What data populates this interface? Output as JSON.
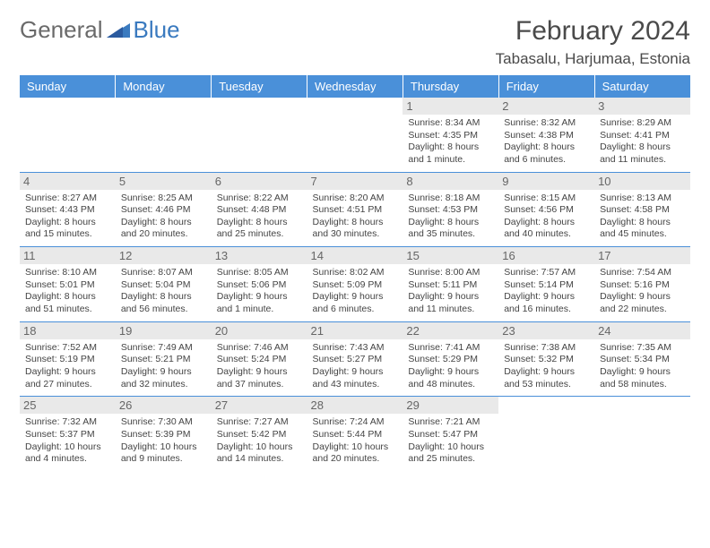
{
  "logo": {
    "word1": "General",
    "word2": "Blue"
  },
  "title": "February 2024",
  "location": "Tabasalu, Harjumaa, Estonia",
  "colors": {
    "header_bg": "#4a90d9",
    "header_text": "#ffffff",
    "daynum_bg": "#e9e9e9",
    "daynum_text": "#666666",
    "border": "#4a90d9",
    "logo_gray": "#6a6a6a",
    "logo_blue": "#3a7abf"
  },
  "weekdays": [
    "Sunday",
    "Monday",
    "Tuesday",
    "Wednesday",
    "Thursday",
    "Friday",
    "Saturday"
  ],
  "weeks": [
    [
      {
        "empty": true
      },
      {
        "empty": true
      },
      {
        "empty": true
      },
      {
        "empty": true
      },
      {
        "day": "1",
        "sunrise": "Sunrise: 8:34 AM",
        "sunset": "Sunset: 4:35 PM",
        "daylight": "Daylight: 8 hours and 1 minute."
      },
      {
        "day": "2",
        "sunrise": "Sunrise: 8:32 AM",
        "sunset": "Sunset: 4:38 PM",
        "daylight": "Daylight: 8 hours and 6 minutes."
      },
      {
        "day": "3",
        "sunrise": "Sunrise: 8:29 AM",
        "sunset": "Sunset: 4:41 PM",
        "daylight": "Daylight: 8 hours and 11 minutes."
      }
    ],
    [
      {
        "day": "4",
        "sunrise": "Sunrise: 8:27 AM",
        "sunset": "Sunset: 4:43 PM",
        "daylight": "Daylight: 8 hours and 15 minutes."
      },
      {
        "day": "5",
        "sunrise": "Sunrise: 8:25 AM",
        "sunset": "Sunset: 4:46 PM",
        "daylight": "Daylight: 8 hours and 20 minutes."
      },
      {
        "day": "6",
        "sunrise": "Sunrise: 8:22 AM",
        "sunset": "Sunset: 4:48 PM",
        "daylight": "Daylight: 8 hours and 25 minutes."
      },
      {
        "day": "7",
        "sunrise": "Sunrise: 8:20 AM",
        "sunset": "Sunset: 4:51 PM",
        "daylight": "Daylight: 8 hours and 30 minutes."
      },
      {
        "day": "8",
        "sunrise": "Sunrise: 8:18 AM",
        "sunset": "Sunset: 4:53 PM",
        "daylight": "Daylight: 8 hours and 35 minutes."
      },
      {
        "day": "9",
        "sunrise": "Sunrise: 8:15 AM",
        "sunset": "Sunset: 4:56 PM",
        "daylight": "Daylight: 8 hours and 40 minutes."
      },
      {
        "day": "10",
        "sunrise": "Sunrise: 8:13 AM",
        "sunset": "Sunset: 4:58 PM",
        "daylight": "Daylight: 8 hours and 45 minutes."
      }
    ],
    [
      {
        "day": "11",
        "sunrise": "Sunrise: 8:10 AM",
        "sunset": "Sunset: 5:01 PM",
        "daylight": "Daylight: 8 hours and 51 minutes."
      },
      {
        "day": "12",
        "sunrise": "Sunrise: 8:07 AM",
        "sunset": "Sunset: 5:04 PM",
        "daylight": "Daylight: 8 hours and 56 minutes."
      },
      {
        "day": "13",
        "sunrise": "Sunrise: 8:05 AM",
        "sunset": "Sunset: 5:06 PM",
        "daylight": "Daylight: 9 hours and 1 minute."
      },
      {
        "day": "14",
        "sunrise": "Sunrise: 8:02 AM",
        "sunset": "Sunset: 5:09 PM",
        "daylight": "Daylight: 9 hours and 6 minutes."
      },
      {
        "day": "15",
        "sunrise": "Sunrise: 8:00 AM",
        "sunset": "Sunset: 5:11 PM",
        "daylight": "Daylight: 9 hours and 11 minutes."
      },
      {
        "day": "16",
        "sunrise": "Sunrise: 7:57 AM",
        "sunset": "Sunset: 5:14 PM",
        "daylight": "Daylight: 9 hours and 16 minutes."
      },
      {
        "day": "17",
        "sunrise": "Sunrise: 7:54 AM",
        "sunset": "Sunset: 5:16 PM",
        "daylight": "Daylight: 9 hours and 22 minutes."
      }
    ],
    [
      {
        "day": "18",
        "sunrise": "Sunrise: 7:52 AM",
        "sunset": "Sunset: 5:19 PM",
        "daylight": "Daylight: 9 hours and 27 minutes."
      },
      {
        "day": "19",
        "sunrise": "Sunrise: 7:49 AM",
        "sunset": "Sunset: 5:21 PM",
        "daylight": "Daylight: 9 hours and 32 minutes."
      },
      {
        "day": "20",
        "sunrise": "Sunrise: 7:46 AM",
        "sunset": "Sunset: 5:24 PM",
        "daylight": "Daylight: 9 hours and 37 minutes."
      },
      {
        "day": "21",
        "sunrise": "Sunrise: 7:43 AM",
        "sunset": "Sunset: 5:27 PM",
        "daylight": "Daylight: 9 hours and 43 minutes."
      },
      {
        "day": "22",
        "sunrise": "Sunrise: 7:41 AM",
        "sunset": "Sunset: 5:29 PM",
        "daylight": "Daylight: 9 hours and 48 minutes."
      },
      {
        "day": "23",
        "sunrise": "Sunrise: 7:38 AM",
        "sunset": "Sunset: 5:32 PM",
        "daylight": "Daylight: 9 hours and 53 minutes."
      },
      {
        "day": "24",
        "sunrise": "Sunrise: 7:35 AM",
        "sunset": "Sunset: 5:34 PM",
        "daylight": "Daylight: 9 hours and 58 minutes."
      }
    ],
    [
      {
        "day": "25",
        "sunrise": "Sunrise: 7:32 AM",
        "sunset": "Sunset: 5:37 PM",
        "daylight": "Daylight: 10 hours and 4 minutes."
      },
      {
        "day": "26",
        "sunrise": "Sunrise: 7:30 AM",
        "sunset": "Sunset: 5:39 PM",
        "daylight": "Daylight: 10 hours and 9 minutes."
      },
      {
        "day": "27",
        "sunrise": "Sunrise: 7:27 AM",
        "sunset": "Sunset: 5:42 PM",
        "daylight": "Daylight: 10 hours and 14 minutes."
      },
      {
        "day": "28",
        "sunrise": "Sunrise: 7:24 AM",
        "sunset": "Sunset: 5:44 PM",
        "daylight": "Daylight: 10 hours and 20 minutes."
      },
      {
        "day": "29",
        "sunrise": "Sunrise: 7:21 AM",
        "sunset": "Sunset: 5:47 PM",
        "daylight": "Daylight: 10 hours and 25 minutes."
      },
      {
        "empty": true
      },
      {
        "empty": true
      }
    ]
  ]
}
